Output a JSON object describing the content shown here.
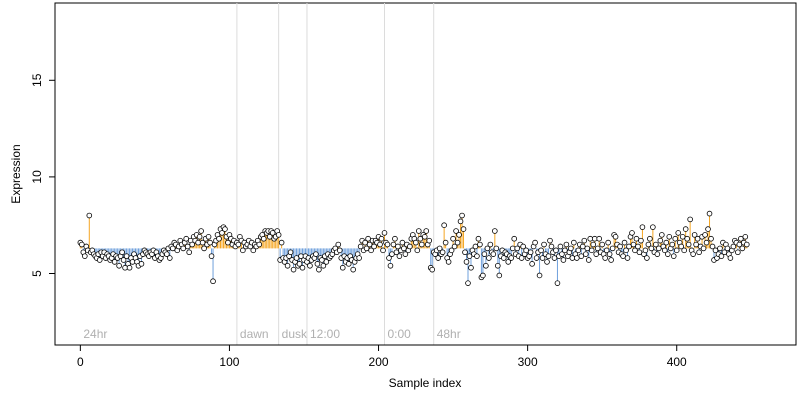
{
  "chart_data": {
    "type": "scatter",
    "title": "",
    "xlabel": "Sample index",
    "ylabel": "Expression",
    "xlim": [
      -17,
      480
    ],
    "ylim": [
      1.3,
      19.0
    ],
    "x_ticks": [
      0,
      100,
      200,
      300,
      400
    ],
    "y_ticks": [
      5,
      10,
      15
    ],
    "grid": false,
    "legend": "none",
    "baseline": 6.3,
    "colors": {
      "above_baseline": "#f5a623",
      "below_baseline": "#6fa0dc",
      "point_fill": "#ffffff",
      "point_stroke": "#000000",
      "annotation_line": "#dcdcdc",
      "annotation_text": "#b0b0b0"
    },
    "annotations": [
      {
        "label": "24hr",
        "x": 0
      },
      {
        "label": "dawn",
        "x": 105
      },
      {
        "label": "dusk",
        "x": 133
      },
      {
        "label": "12:00",
        "x": 152
      },
      {
        "label": "0:00",
        "x": 204
      },
      {
        "label": "48hr",
        "x": 237
      }
    ],
    "series": [
      {
        "values": [
          6.6,
          6.5,
          6.1,
          5.9,
          6.4,
          6.2,
          8.0,
          6.1,
          6.2,
          6.0,
          5.9,
          5.8,
          6.0,
          5.7,
          6.1,
          5.9,
          6.1,
          5.8,
          6.0,
          5.9,
          5.7,
          5.8,
          6.0,
          5.6,
          5.9,
          5.8,
          5.4,
          5.9,
          6.1,
          5.7,
          5.3,
          5.9,
          5.5,
          5.3,
          5.8,
          5.6,
          6.0,
          5.8,
          5.6,
          5.4,
          5.9,
          5.5,
          6.0,
          6.2,
          6.1,
          6.0,
          5.9,
          6.1,
          6.0,
          6.2,
          5.8,
          6.1,
          5.9,
          5.7,
          5.8,
          6.0,
          6.2,
          6.1,
          6.0,
          6.3,
          5.8,
          6.4,
          6.3,
          6.6,
          6.5,
          6.2,
          6.4,
          6.7,
          6.5,
          6.3,
          6.6,
          6.8,
          6.4,
          6.1,
          6.7,
          6.5,
          6.9,
          6.7,
          7.0,
          6.6,
          6.9,
          7.2,
          6.6,
          6.3,
          6.8,
          6.5,
          6.9,
          6.6,
          5.9,
          4.6,
          6.5,
          6.7,
          7.0,
          6.8,
          7.3,
          7.1,
          7.4,
          7.3,
          6.9,
          6.6,
          7.0,
          6.8,
          6.5,
          6.7,
          6.4,
          6.6,
          6.5,
          6.9,
          6.7,
          6.2,
          6.6,
          6.4,
          6.5,
          6.7,
          6.4,
          6.6,
          6.2,
          6.5,
          6.4,
          6.7,
          6.5,
          6.9,
          7.0,
          6.8,
          7.2,
          7.1,
          7.2,
          6.9,
          7.2,
          7.1,
          6.8,
          6.9,
          7.2,
          7.0,
          5.7,
          6.6,
          5.8,
          5.6,
          5.8,
          5.4,
          5.9,
          6.1,
          5.7,
          5.2,
          5.6,
          5.8,
          5.4,
          5.5,
          5.9,
          5.3,
          5.7,
          5.9,
          5.6,
          5.8,
          5.4,
          5.7,
          5.9,
          5.8,
          6.0,
          5.5,
          5.2,
          5.8,
          5.7,
          5.4,
          5.9,
          5.6,
          6.0,
          5.8,
          5.9,
          6.0,
          6.2,
          6.3,
          6.1,
          6.5,
          6.2,
          5.8,
          5.3,
          5.9,
          5.6,
          5.8,
          5.5,
          5.9,
          5.7,
          5.2,
          5.6,
          5.8,
          6.0,
          5.8,
          6.4,
          6.7,
          6.2,
          6.6,
          6.3,
          6.8,
          6.5,
          6.2,
          6.7,
          6.4,
          6.7,
          6.6,
          6.9,
          6.5,
          6.8,
          6.2,
          7.1,
          6.6,
          6.5,
          5.8,
          5.4,
          6.0,
          6.5,
          6.8,
          6.1,
          6.4,
          5.9,
          6.2,
          6.6,
          6.3,
          6.0,
          6.5,
          6.2,
          6.4,
          6.8,
          7.0,
          6.8,
          6.6,
          6.2,
          7.2,
          6.8,
          6.5,
          7.0,
          6.9,
          7.2,
          6.5,
          6.7,
          5.3,
          5.2,
          6.1,
          6.0,
          6.2,
          5.8,
          6.3,
          6.0,
          6.1,
          7.5,
          6.6,
          5.8,
          5.6,
          6.0,
          6.2,
          6.8,
          6.4,
          7.2,
          6.6,
          7.0,
          7.7,
          8.0,
          7.3,
          6.1,
          5.6,
          4.5,
          5.9,
          5.3,
          6.2,
          6.0,
          6.4,
          5.9,
          6.8,
          6.5,
          4.8,
          4.9,
          6.0,
          5.4,
          6.3,
          5.8,
          6.5,
          6.1,
          6.0,
          7.2,
          6.3,
          5.4,
          4.9,
          5.9,
          6.2,
          5.8,
          6.1,
          6.0,
          5.6,
          5.9,
          5.8,
          6.3,
          6.8,
          6.0,
          6.3,
          5.9,
          6.5,
          5.8,
          6.4,
          6.0,
          6.2,
          5.8,
          5.9,
          6.1,
          5.5,
          6.4,
          6.6,
          5.8,
          6.1,
          4.9,
          6.2,
          5.8,
          6.5,
          6.0,
          5.6,
          5.9,
          6.7,
          6.4,
          6.1,
          5.8,
          6.2,
          4.5,
          5.9,
          6.4,
          6.0,
          5.7,
          6.2,
          6.5,
          5.9,
          6.1,
          6.3,
          5.8,
          6.6,
          6.0,
          5.8,
          6.2,
          6.5,
          5.9,
          6.4,
          6.7,
          6.0,
          6.3,
          5.7,
          6.8,
          6.2,
          6.5,
          6.8,
          6.0,
          6.3,
          6.8,
          6.1,
          6.5,
          6.0,
          5.8,
          6.2,
          6.6,
          6.0,
          5.7,
          6.3,
          7.0,
          6.9,
          6.5,
          6.1,
          6.4,
          6.0,
          5.9,
          6.6,
          6.2,
          5.8,
          6.4,
          6.9,
          7.1,
          6.5,
          6.2,
          6.8,
          6.4,
          6.1,
          6.7,
          7.4,
          6.0,
          6.2,
          5.8,
          6.5,
          6.8,
          6.3,
          7.4,
          6.1,
          6.5,
          6.0,
          6.3,
          6.7,
          7.0,
          6.4,
          6.2,
          6.6,
          6.0,
          6.9,
          6.3,
          6.5,
          5.9,
          6.8,
          6.2,
          7.1,
          6.6,
          6.4,
          6.9,
          6.2,
          7.3,
          6.8,
          6.5,
          7.8,
          6.2,
          6.0,
          7.0,
          6.5,
          6.8,
          6.1,
          6.4,
          6.9,
          6.3,
          7.0,
          6.6,
          7.3,
          8.1,
          6.8,
          6.4,
          5.7,
          6.2,
          5.8,
          6.0,
          6.3,
          5.9,
          6.6,
          6.1,
          6.5,
          6.3,
          6.0,
          5.8,
          6.2,
          6.4,
          6.7,
          6.6,
          6.1,
          6.5,
          6.8,
          6.3,
          6.6,
          6.9,
          6.5
        ]
      }
    ]
  }
}
